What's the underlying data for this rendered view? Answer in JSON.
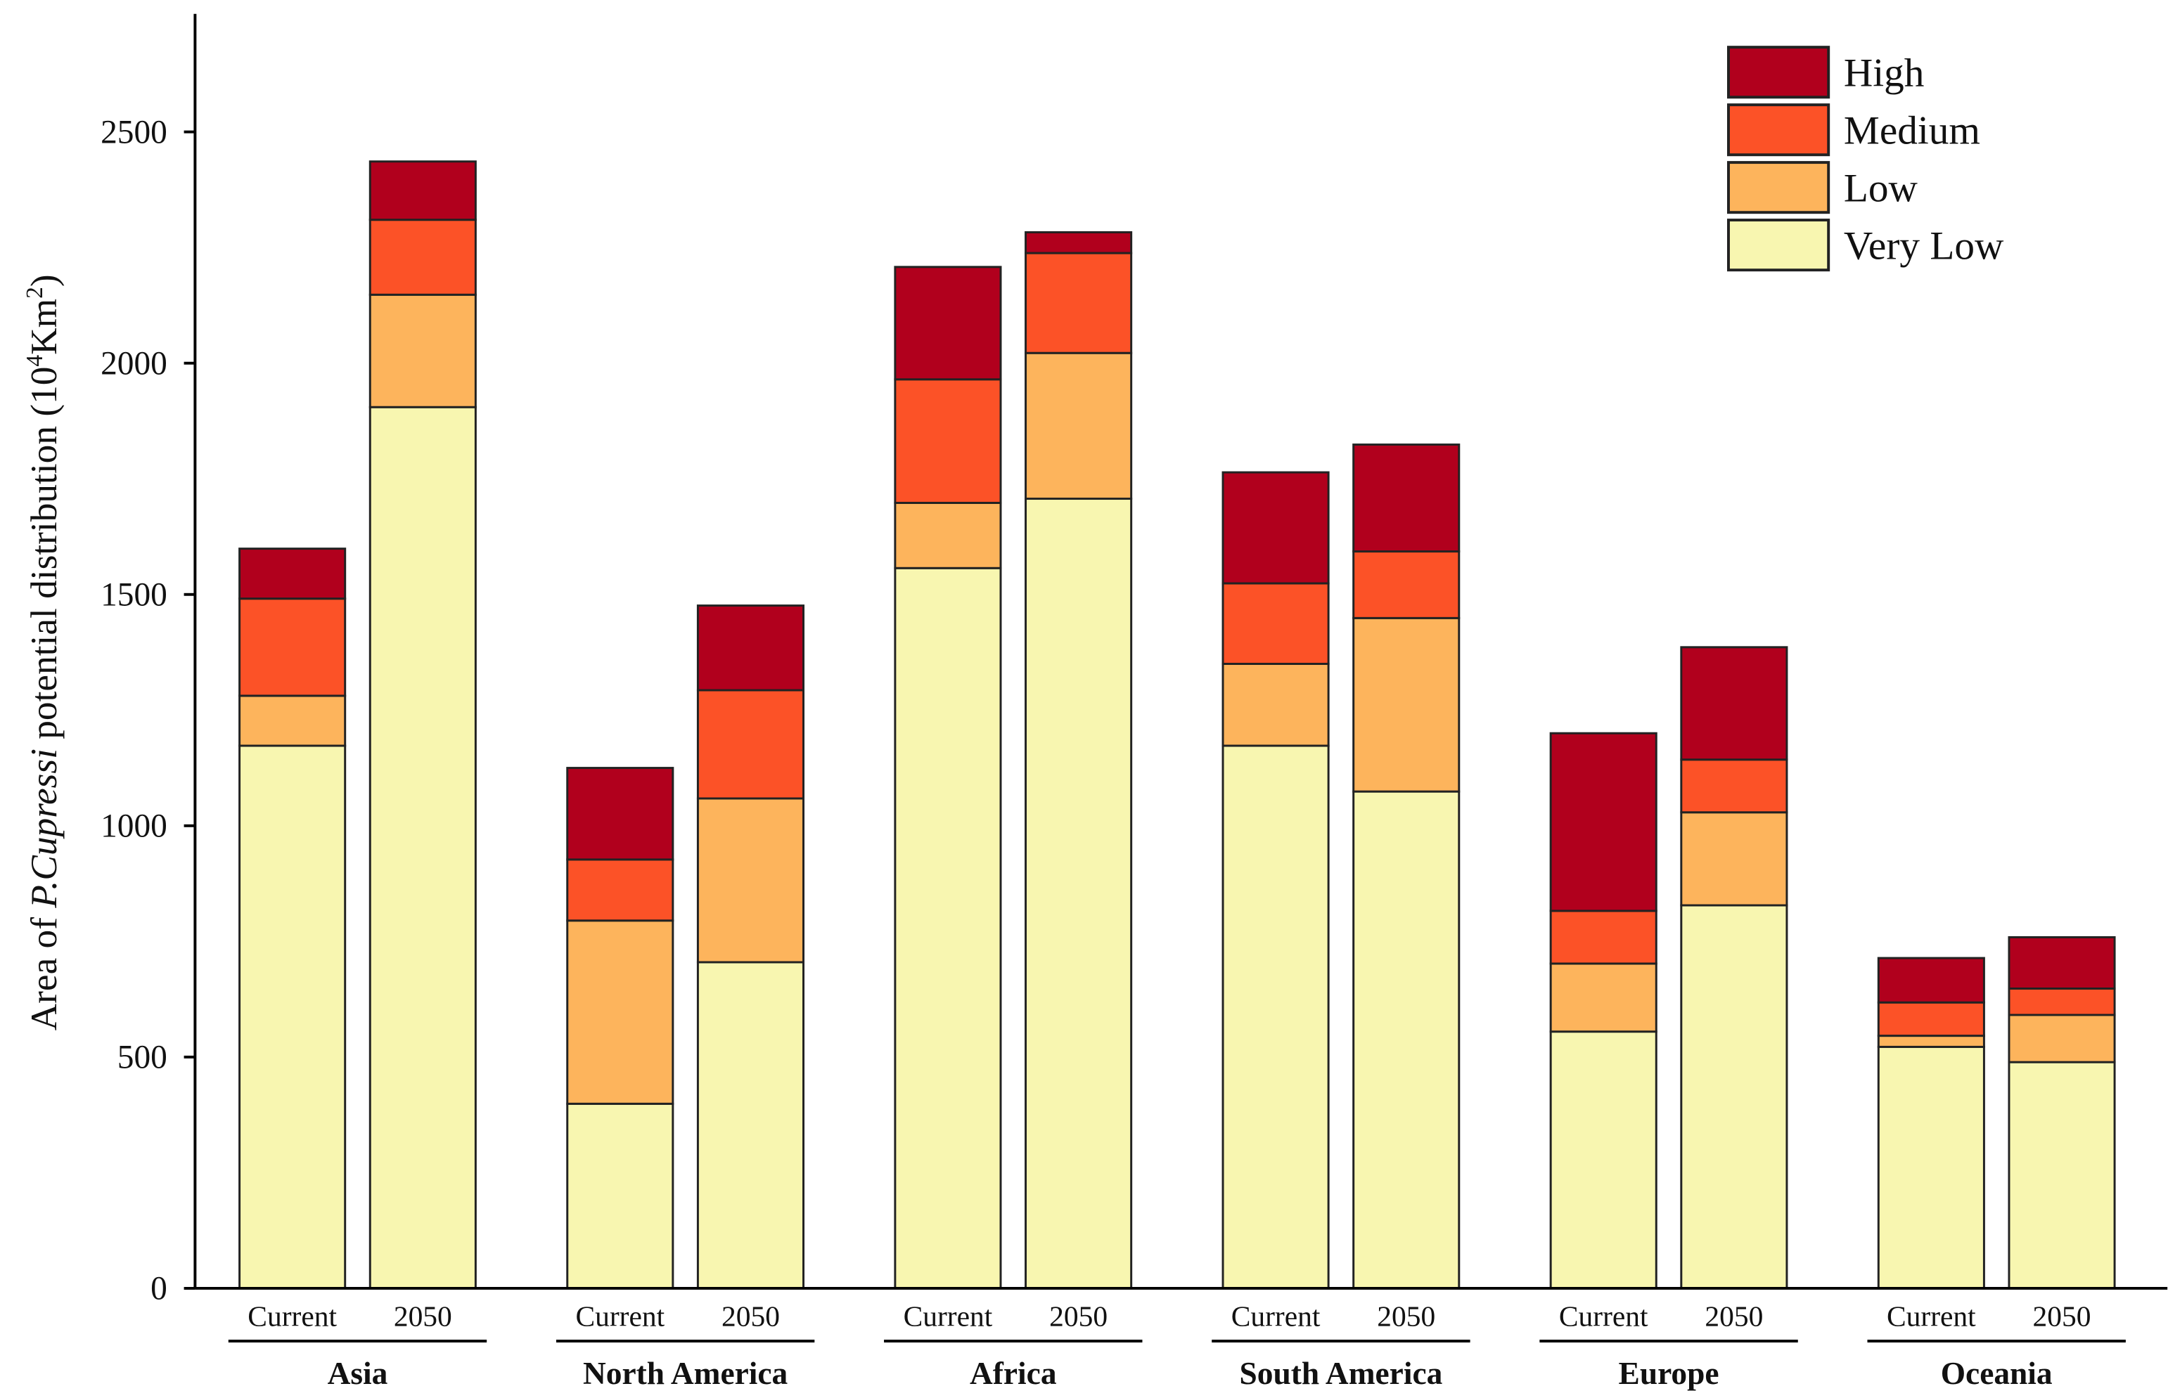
{
  "chart_data": {
    "type": "bar",
    "stacked": true,
    "ylabel_prefix": "Area of ",
    "ylabel_italic": "P.Cupressi",
    "ylabel_suffix": " potential distribution (10",
    "ylabel_sup1": "4",
    "ylabel_unit": "Km",
    "ylabel_sup2": "2",
    "ylabel_close": ")",
    "ylim": [
      0,
      2750
    ],
    "yticks": [
      0,
      500,
      1000,
      1500,
      2000,
      2500
    ],
    "legend_position": "top-right",
    "grid": false,
    "bar_labels": [
      "Current",
      "2050"
    ],
    "groups": [
      "Asia",
      "North America",
      "Africa",
      "South America",
      "Europe",
      "Oceania"
    ],
    "series": [
      {
        "name": "Very Low",
        "color": "#f8f6b0",
        "values": [
          [
            1173,
            1905
          ],
          [
            399,
            705
          ],
          [
            1557,
            1707
          ],
          [
            1173,
            1074
          ],
          [
            555,
            828
          ],
          [
            522,
            489
          ]
        ]
      },
      {
        "name": "Low",
        "color": "#fdb45c",
        "values": [
          [
            108,
            243
          ],
          [
            396,
            354
          ],
          [
            141,
            315
          ],
          [
            177,
            375
          ],
          [
            147,
            201
          ],
          [
            24,
            102
          ]
        ]
      },
      {
        "name": "Medium",
        "color": "#fc5227",
        "values": [
          [
            210,
            162
          ],
          [
            132,
            234
          ],
          [
            267,
            216
          ],
          [
            174,
            144
          ],
          [
            114,
            114
          ],
          [
            72,
            57
          ]
        ]
      },
      {
        "name": "High",
        "color": "#b1001d",
        "values": [
          [
            108,
            126
          ],
          [
            198,
            183
          ],
          [
            243,
            45
          ],
          [
            240,
            231
          ],
          [
            384,
            243
          ],
          [
            96,
            111
          ]
        ]
      }
    ]
  }
}
